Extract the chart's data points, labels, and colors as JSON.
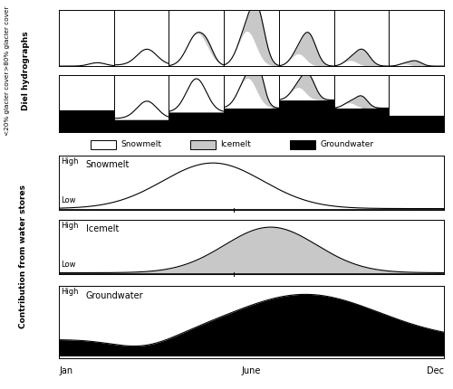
{
  "top_row_label": ">80% glacier cover",
  "bottom_row_label": "<20% glacier cover",
  "y_label_diel": "Diel hydrographs",
  "y_label_contribution": "Contribution from water stores",
  "legend_items": [
    "Snowmelt",
    "Icemelt",
    "Groundwater"
  ],
  "bottom_panel_labels": [
    "Snowmelt",
    "Icemelt",
    "Groundwater"
  ],
  "x_ticks": [
    "Jan",
    "June",
    "Dec"
  ],
  "high_label": "High",
  "low_label": "Low",
  "snowmelt_color": "#ffffff",
  "icemelt_color": "#c8c8c8",
  "groundwater_color": "#000000",
  "n_mini_panels": 7
}
